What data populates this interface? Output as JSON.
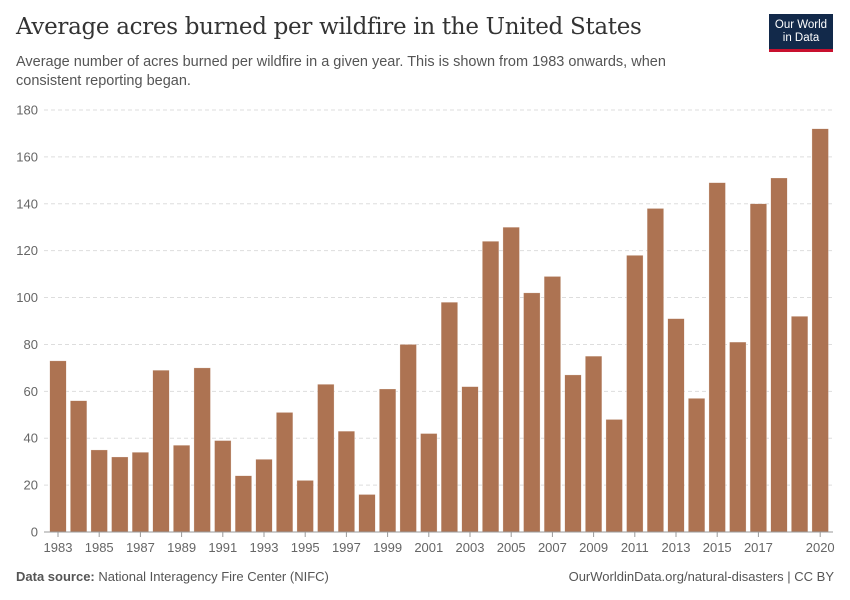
{
  "header": {
    "title": "Average acres burned per wildfire in the United States",
    "subtitle": "Average number of acres burned per wildfire in a given year. This is shown from 1983 onwards, when consistent reporting began.",
    "logo": "Our World in Data"
  },
  "footer": {
    "source_label": "Data source:",
    "source": "National Interagency Fire Center (NIFC)",
    "link": "OurWorldinData.org/natural-disasters | CC BY"
  },
  "chart_data": {
    "type": "bar",
    "title": "Average acres burned per wildfire in the United States",
    "categories": [
      "1983",
      "1984",
      "1985",
      "1986",
      "1987",
      "1988",
      "1989",
      "1990",
      "1991",
      "1992",
      "1993",
      "1994",
      "1995",
      "1996",
      "1997",
      "1998",
      "1999",
      "2000",
      "2001",
      "2002",
      "2003",
      "2004",
      "2005",
      "2006",
      "2007",
      "2008",
      "2009",
      "2010",
      "2011",
      "2012",
      "2013",
      "2014",
      "2015",
      "2016",
      "2017",
      "2018",
      "2019",
      "2020"
    ],
    "values": [
      73,
      56,
      35,
      32,
      34,
      69,
      37,
      70,
      39,
      24,
      31,
      51,
      22,
      63,
      43,
      16,
      61,
      80,
      42,
      98,
      62,
      124,
      130,
      102,
      109,
      67,
      75,
      48,
      118,
      138,
      91,
      57,
      149,
      81,
      140,
      151,
      92,
      172
    ],
    "x_tick_labels": [
      "1983",
      "1985",
      "1987",
      "1989",
      "1991",
      "1993",
      "1995",
      "1997",
      "1999",
      "2001",
      "2003",
      "2005",
      "2007",
      "2009",
      "2011",
      "2013",
      "2015",
      "2017",
      "2020"
    ],
    "y_ticks": [
      0,
      20,
      40,
      60,
      80,
      100,
      120,
      140,
      160,
      180
    ],
    "ylim": [
      0,
      180
    ],
    "grid": true,
    "bar_color": "#ad7352"
  }
}
